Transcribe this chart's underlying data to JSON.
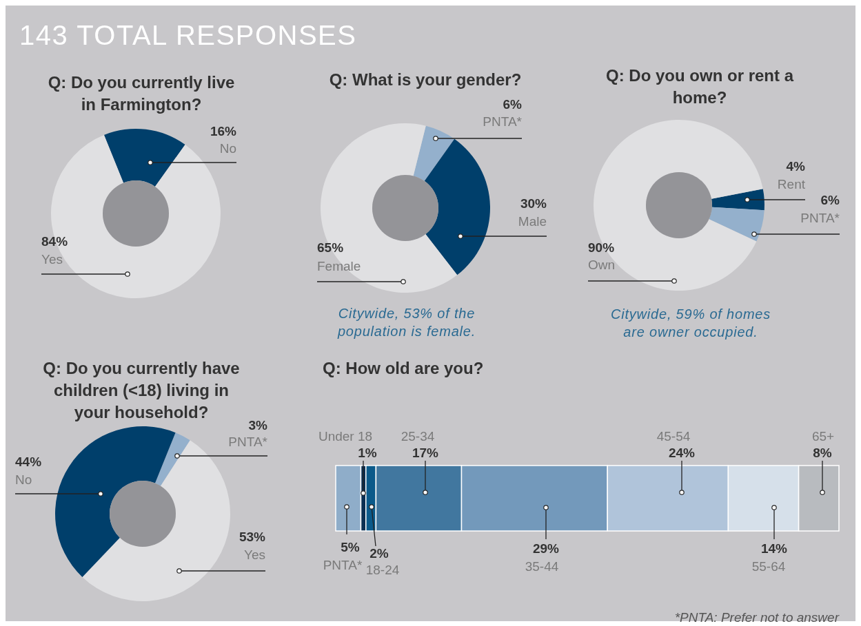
{
  "chart_data": [
    {
      "type": "other",
      "title": "143 TOTAL RESPONSES"
    },
    {
      "type": "donut",
      "title": "Q: Do you currently live in Farmington?",
      "categories": [
        "No",
        "Yes"
      ],
      "values": [
        16,
        84
      ],
      "value_labels": [
        "16%",
        "84%"
      ],
      "colors": [
        "#003f6b",
        "#e0e0e2"
      ]
    },
    {
      "type": "donut",
      "title": "Q: What is your gender?",
      "categories": [
        "PNTA*",
        "Male",
        "Female"
      ],
      "values": [
        6,
        30,
        65
      ],
      "value_labels": [
        "6%",
        "30%",
        "65%"
      ],
      "colors": [
        "#94b0cc",
        "#003f6b",
        "#e0e0e2"
      ],
      "annotations": [
        "Citywide, 53% of the population is female."
      ]
    },
    {
      "type": "donut",
      "title": "Q: Do you own or rent a home?",
      "categories": [
        "Rent",
        "PNTA*",
        "Own"
      ],
      "values": [
        4,
        6,
        90
      ],
      "value_labels": [
        "4%",
        "6%",
        "90%"
      ],
      "colors": [
        "#003f6b",
        "#94b0cc",
        "#e0e0e2"
      ],
      "annotations": [
        "Citywide, 59% of homes are owner occupied."
      ]
    },
    {
      "type": "donut",
      "title": "Q: Do you currently have children (<18) living in your household?",
      "categories": [
        "PNTA*",
        "Yes",
        "No"
      ],
      "values": [
        3,
        53,
        44
      ],
      "value_labels": [
        "3%",
        "53%",
        "44%"
      ],
      "colors": [
        "#94b0cc",
        "#e0e0e2",
        "#003f6b"
      ]
    },
    {
      "type": "bar",
      "title": "Q: How old are you?",
      "orientation": "horizontal",
      "stacked": true,
      "categories": [
        null
      ],
      "annotations": [
        "*PNTA: Prefer not to answer"
      ],
      "series": [
        {
          "name": "PNTA*",
          "color": "#8fadc9",
          "values": [
            5
          ],
          "value_labels": [
            "5%"
          ]
        },
        {
          "name": "Under 18",
          "color": "#0a2f52",
          "values": [
            1
          ],
          "value_labels": [
            "1%"
          ]
        },
        {
          "name": "18-24",
          "color": "#0b5a8a",
          "values": [
            2
          ],
          "value_labels": [
            "2%"
          ]
        },
        {
          "name": "25-34",
          "color": "#41779f",
          "values": [
            17
          ],
          "value_labels": [
            "17%"
          ]
        },
        {
          "name": "35-44",
          "color": "#7399bb",
          "values": [
            29
          ],
          "value_labels": [
            "29%"
          ]
        },
        {
          "name": "45-54",
          "color": "#b0c4da",
          "values": [
            24
          ],
          "value_labels": [
            "24%"
          ]
        },
        {
          "name": "55-64",
          "color": "#d6e0ea",
          "values": [
            14
          ],
          "value_labels": [
            "14%"
          ]
        },
        {
          "name": "65+",
          "color": "#b8bbbf",
          "values": [
            8
          ],
          "value_labels": [
            "8%"
          ]
        }
      ]
    }
  ]
}
